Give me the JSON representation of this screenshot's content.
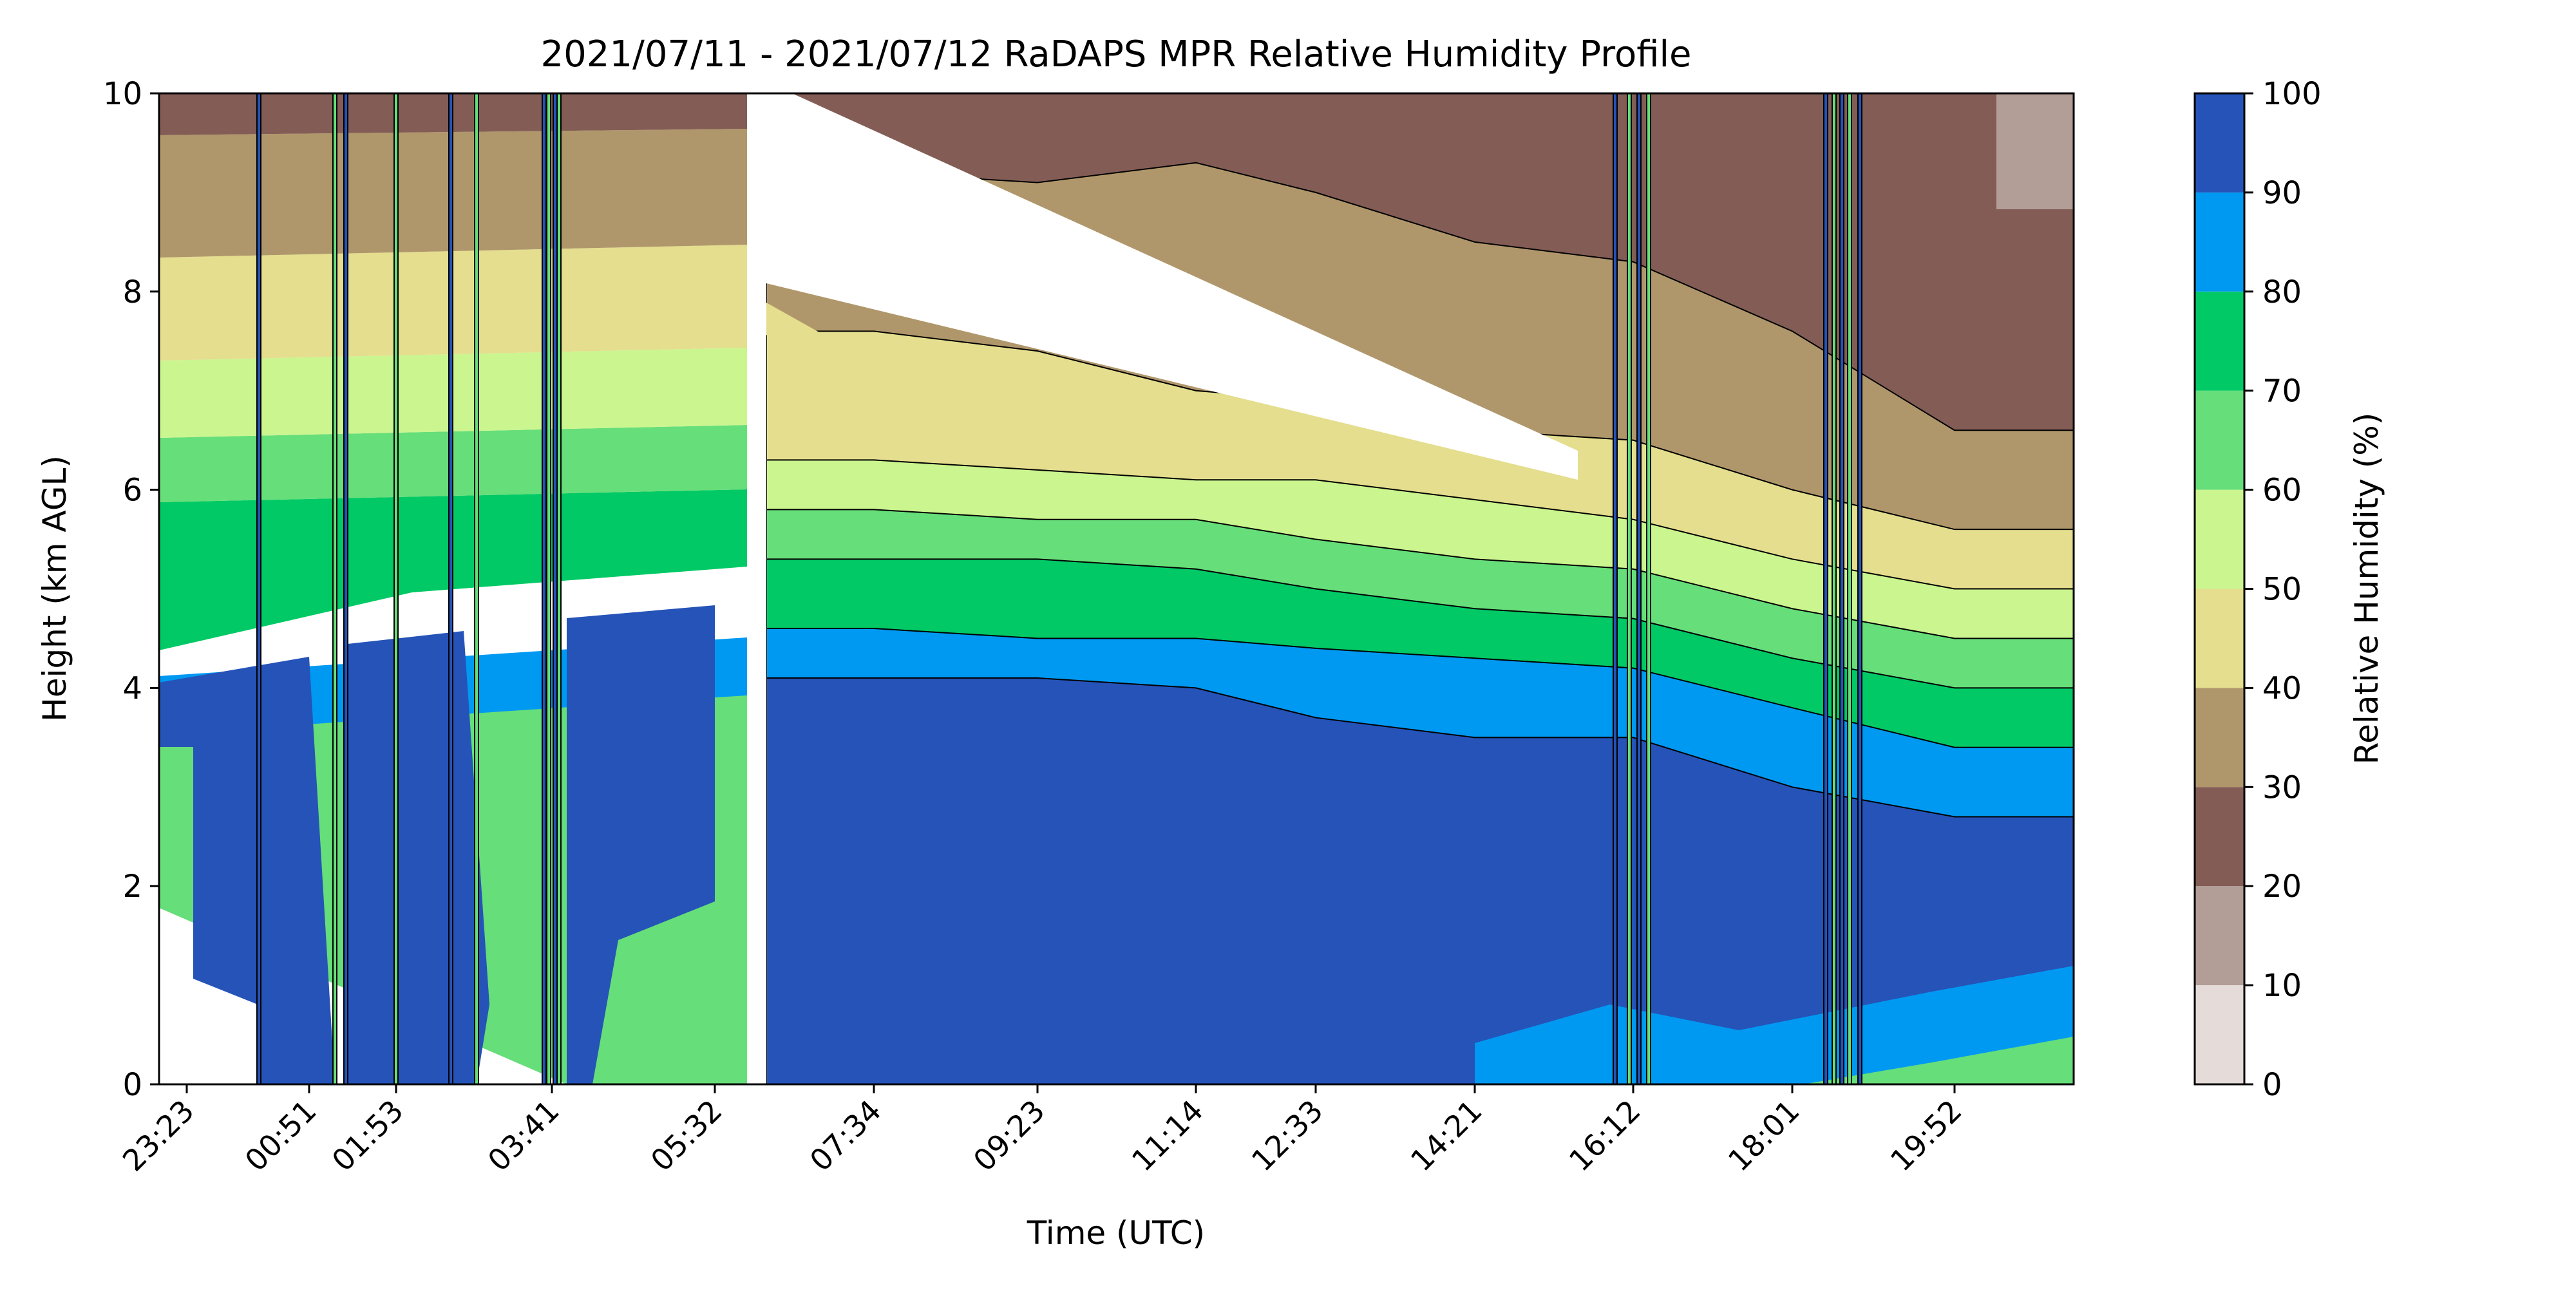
{
  "chart_data": {
    "type": "contour",
    "title": "2021/07/11 - 2021/07/12 RaDAPS MPR Relative Humidity Profile",
    "xlabel": "Time (UTC)",
    "ylabel": "Height (km AGL)",
    "ylim": [
      0,
      10
    ],
    "x_ticks": [
      "23:23",
      "00:51",
      "01:53",
      "03:41",
      "05:32",
      "07:34",
      "09:23",
      "11:14",
      "12:33",
      "14:21",
      "16:12",
      "18:01",
      "19:52"
    ],
    "y_ticks": [
      0,
      2,
      4,
      6,
      8,
      10
    ],
    "grid": false,
    "colorbar": {
      "label": "Relative Humidity (%)",
      "ticks": [
        0,
        10,
        20,
        30,
        40,
        50,
        60,
        70,
        80,
        90,
        100
      ],
      "colors": [
        "#e5dbd9",
        "#b29e97",
        "#835d55",
        "#b0976b",
        "#e4de8e",
        "#cbf58f",
        "#66de79",
        "#00c965",
        "#0099f2",
        "#2553b8"
      ]
    },
    "profile_levels_km": {
      "description_levels": [
        "RH90",
        "RH80",
        "RH70",
        "RH60",
        "RH50",
        "RH40",
        "RH30"
      ],
      "periods": [
        {
          "time": "07:34",
          "rh90": 4.1,
          "rh80": 4.6,
          "rh70": 5.3,
          "rh60": 5.8,
          "rh50": 6.3,
          "rh40": 7.6,
          "rh30": 9.2
        },
        {
          "time": "09:23",
          "rh90": 4.1,
          "rh80": 4.5,
          "rh70": 5.3,
          "rh60": 5.7,
          "rh50": 6.2,
          "rh40": 7.4,
          "rh30": 9.1
        },
        {
          "time": "11:14",
          "rh90": 4.0,
          "rh80": 4.5,
          "rh70": 5.2,
          "rh60": 5.7,
          "rh50": 6.1,
          "rh40": 7.0,
          "rh30": 9.3
        },
        {
          "time": "12:33",
          "rh90": 3.7,
          "rh80": 4.4,
          "rh70": 5.0,
          "rh60": 5.5,
          "rh50": 6.1,
          "rh40": 6.9,
          "rh30": 9.0
        },
        {
          "time": "14:21",
          "rh90": 3.5,
          "rh80": 4.3,
          "rh70": 4.8,
          "rh60": 5.3,
          "rh50": 5.9,
          "rh40": 6.6,
          "rh30": 8.5
        },
        {
          "time": "16:12",
          "rh90": 3.5,
          "rh80": 4.2,
          "rh70": 4.7,
          "rh60": 5.2,
          "rh50": 5.7,
          "rh40": 6.5,
          "rh30": 8.3
        },
        {
          "time": "18:01",
          "rh90": 3.0,
          "rh80": 3.8,
          "rh70": 4.3,
          "rh60": 4.8,
          "rh50": 5.3,
          "rh40": 6.0,
          "rh30": 7.6
        },
        {
          "time": "19:52",
          "rh90": 2.7,
          "rh80": 3.4,
          "rh70": 4.0,
          "rh60": 4.5,
          "rh50": 5.0,
          "rh40": 5.6,
          "rh30": 6.6
        }
      ]
    }
  }
}
